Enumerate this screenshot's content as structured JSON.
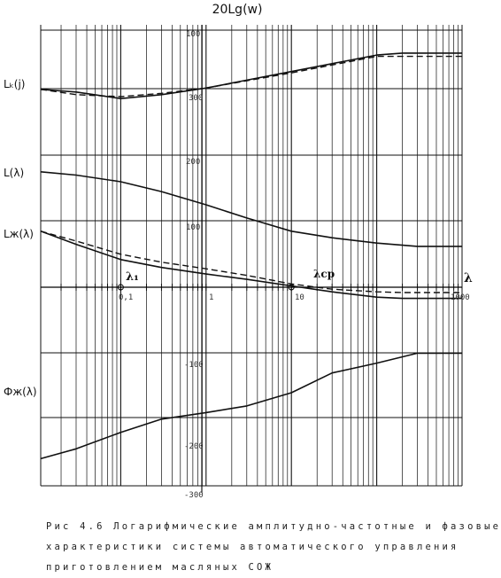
{
  "chart_data": {
    "type": "line",
    "title": "20Lg(w)",
    "x_axis": {
      "label": "λ",
      "scale": "log",
      "xlim": [
        0.01,
        1000
      ],
      "tick_labels": [
        "0,1",
        "1",
        "10",
        "1000"
      ]
    },
    "y_axis": {
      "ylim": [
        -300,
        400
      ],
      "tick_labels": [
        "100",
        "200",
        "100",
        "-100",
        "-200",
        "-300"
      ],
      "tick_label_values": [
        400,
        200,
        100,
        -100,
        -200,
        -300
      ]
    },
    "grid": true,
    "curve_labels": {
      "lk": "Lₖ(j)",
      "l": "L(λ)",
      "lzh": "Lж(λ)",
      "phi": "Фж(λ)"
    },
    "annotations": {
      "lambda1": "λ₁",
      "lambda_cp": "λcp"
    },
    "series": [
      {
        "key": "lk_solid",
        "style": "solid",
        "x": [
          0.01,
          0.03,
          0.1,
          0.3,
          1,
          3,
          10,
          30,
          100,
          200,
          1000
        ],
        "y": [
          300,
          296,
          286,
          292,
          302,
          314,
          327,
          339,
          352,
          355,
          355
        ]
      },
      {
        "key": "lk_dashed",
        "style": "dashed",
        "x": [
          0.01,
          0.03,
          0.1,
          0.3,
          1,
          3,
          10,
          30,
          100,
          200,
          1000
        ],
        "y": [
          300,
          292,
          289,
          294,
          302,
          313,
          325,
          337,
          350,
          350,
          350
        ]
      },
      {
        "key": "l",
        "style": "solid",
        "x": [
          0.01,
          0.03,
          0.1,
          0.3,
          1,
          3,
          10,
          30,
          100,
          300,
          1000
        ],
        "y": [
          175,
          170,
          160,
          145,
          125,
          105,
          85,
          75,
          67,
          62,
          62
        ]
      },
      {
        "key": "lzh_solid",
        "style": "solid",
        "x": [
          0.01,
          0.03,
          0.1,
          0.3,
          1,
          3,
          10,
          30,
          100,
          200,
          1000
        ],
        "y": [
          85,
          65,
          42,
          30,
          20,
          12,
          2,
          -7,
          -15,
          -17,
          -17
        ]
      },
      {
        "key": "lzh_dashed",
        "style": "dashed",
        "x": [
          0.01,
          0.03,
          0.1,
          0.3,
          1,
          3,
          10,
          30,
          100,
          200,
          1000
        ],
        "y": [
          85,
          70,
          50,
          38,
          28,
          18,
          5,
          -3,
          -7,
          -8,
          -8
        ]
      },
      {
        "key": "phi",
        "style": "solid",
        "x": [
          0.01,
          0.03,
          0.1,
          0.3,
          1,
          3,
          10,
          30,
          100,
          300,
          1000
        ],
        "y": [
          -260,
          -245,
          -220,
          -200,
          -190,
          -180,
          -160,
          -130,
          -115,
          -100,
          -100
        ]
      }
    ]
  },
  "caption": {
    "line1": "Рис 4.6 Логарифмические амплитудно-частотные и фазовые",
    "line2": "характеристики системы автоматического управления",
    "line3": "приготовлением масляных СОЖ"
  }
}
